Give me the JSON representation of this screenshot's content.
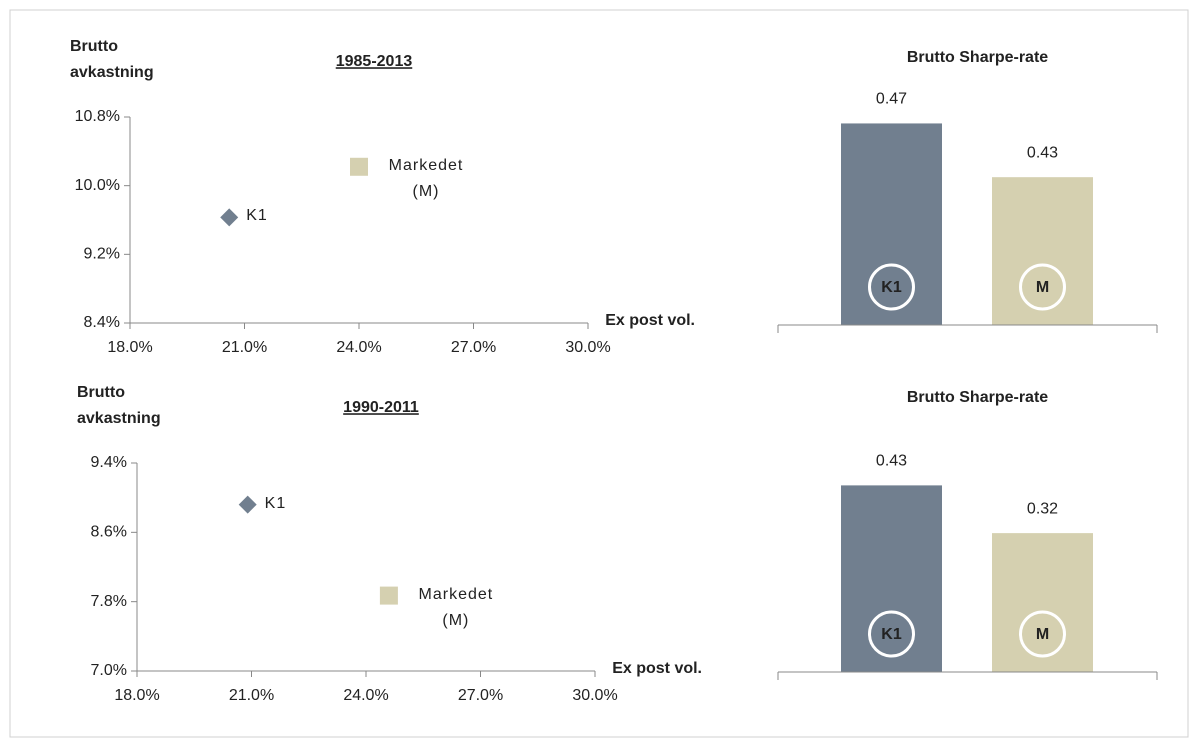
{
  "chart_data": [
    {
      "type": "scatter",
      "title": "1985-2013",
      "y_label": "Brutto avkastning",
      "x_label": "Ex post vol.",
      "xlim": [
        18,
        30
      ],
      "xticks": [
        {
          "value": 18,
          "label": "18.0%"
        },
        {
          "value": 21,
          "label": "21.0%"
        },
        {
          "value": 24,
          "label": "24.0%"
        },
        {
          "value": 27,
          "label": "27.0%"
        },
        {
          "value": 30,
          "label": "30.0%"
        }
      ],
      "ylim": [
        8.4,
        10.8
      ],
      "yticks": [
        {
          "value": 8.4,
          "label": "8.4%"
        },
        {
          "value": 9.2,
          "label": "9.2%"
        },
        {
          "value": 10.0,
          "label": "10.0%"
        },
        {
          "value": 10.8,
          "label": "10.8%"
        }
      ],
      "series": [
        {
          "name": "K1",
          "color": "#717f8f",
          "marker": "diamond",
          "x": [
            20.6
          ],
          "values": [
            9.63
          ]
        },
        {
          "name": "Markedet (M)",
          "color": "#d5d0b0",
          "marker": "square",
          "x": [
            24.0
          ],
          "values": [
            10.22
          ]
        }
      ]
    },
    {
      "type": "scatter",
      "title": "1990-2011",
      "y_label": "Brutto avkastning",
      "x_label": "Ex post vol.",
      "xlim": [
        18,
        30
      ],
      "xticks": [
        {
          "value": 18,
          "label": "18.0%"
        },
        {
          "value": 21,
          "label": "21.0%"
        },
        {
          "value": 24,
          "label": "24.0%"
        },
        {
          "value": 27,
          "label": "27.0%"
        },
        {
          "value": 30,
          "label": "30.0%"
        }
      ],
      "ylim": [
        7.0,
        9.4
      ],
      "yticks": [
        {
          "value": 7.0,
          "label": "7.0%"
        },
        {
          "value": 7.8,
          "label": "7.8%"
        },
        {
          "value": 8.6,
          "label": "8.6%"
        },
        {
          "value": 9.4,
          "label": "9.4%"
        }
      ],
      "series": [
        {
          "name": "K1",
          "color": "#717f8f",
          "marker": "diamond",
          "x": [
            20.9
          ],
          "values": [
            8.92
          ]
        },
        {
          "name": "Markedet (M)",
          "color": "#d5d0b0",
          "marker": "square",
          "x": [
            24.6
          ],
          "values": [
            7.87
          ]
        }
      ]
    },
    {
      "type": "bar",
      "title": "Brutto Sharpe-rate",
      "categories": [
        "K1",
        "M"
      ],
      "values": [
        0.47,
        0.43
      ],
      "colors": [
        "#717f8f",
        "#d5d0b0"
      ],
      "ylim": [
        0.32,
        0.48
      ]
    },
    {
      "type": "bar",
      "title": "Brutto Sharpe-rate",
      "categories": [
        "K1",
        "M"
      ],
      "values": [
        0.43,
        0.32
      ],
      "colors": [
        "#717f8f",
        "#d5d0b0"
      ],
      "ylim": [
        0,
        0.5
      ]
    }
  ]
}
